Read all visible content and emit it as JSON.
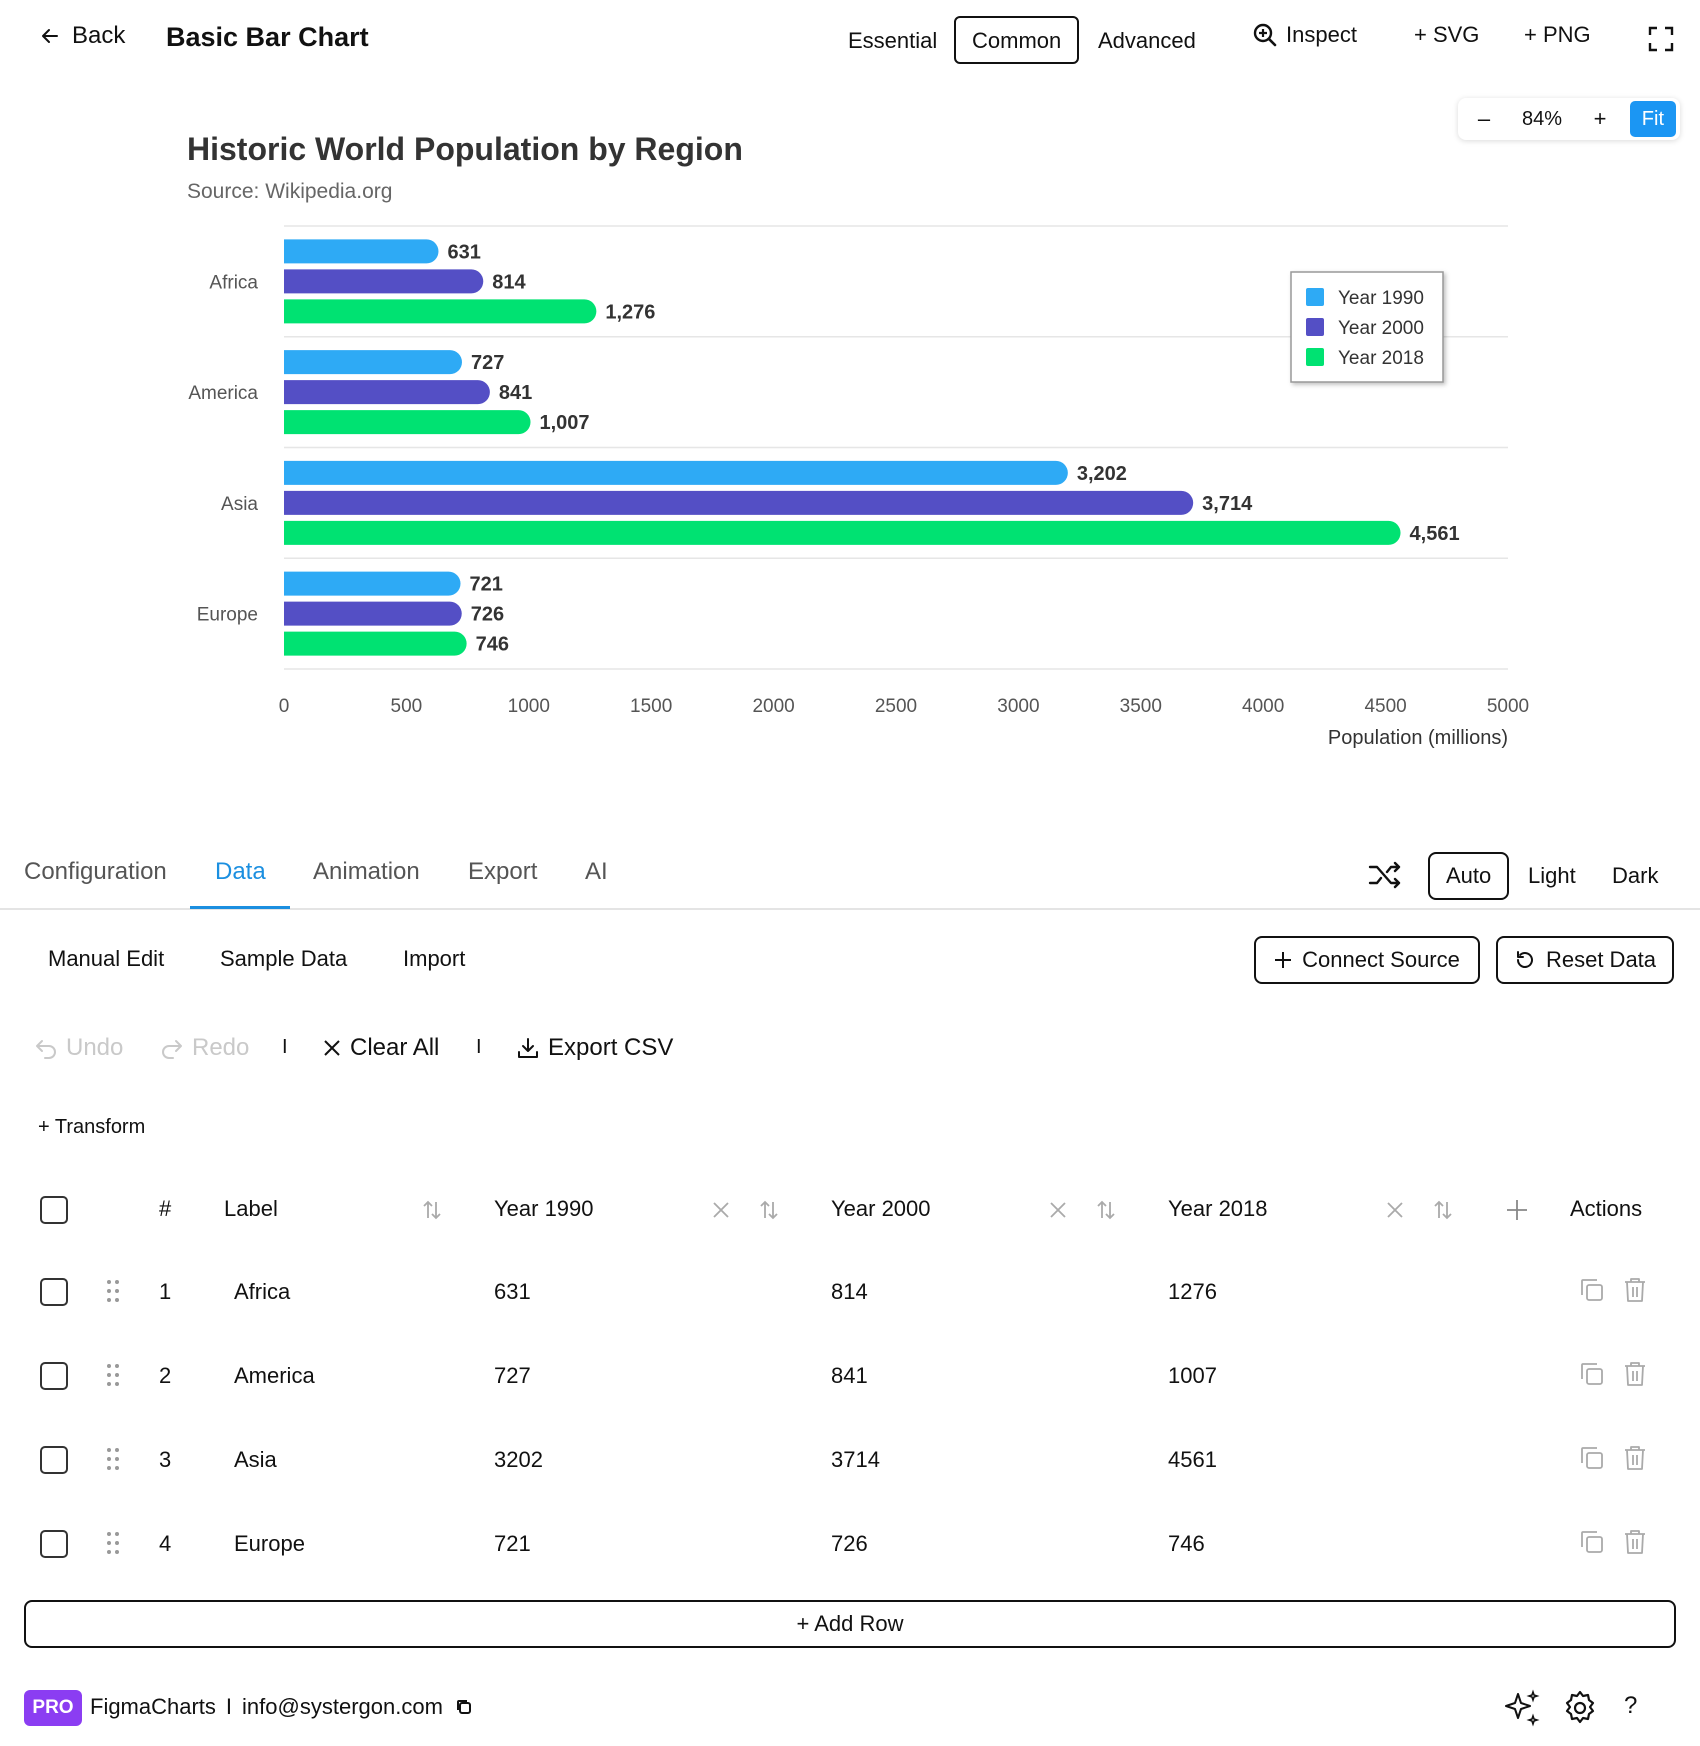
{
  "header": {
    "back_label": "Back",
    "title": "Basic Bar Chart",
    "levels": [
      "Essential",
      "Common",
      "Advanced"
    ],
    "active_level": "Common",
    "inspect_label": "Inspect",
    "svg_label": "+ SVG",
    "png_label": "+ PNG"
  },
  "zoom": {
    "minus": "–",
    "value": "84%",
    "plus": "+",
    "fit": "Fit"
  },
  "chart_data": {
    "type": "bar",
    "orientation": "horizontal",
    "title": "Historic World Population by Region",
    "subtitle": "Source: Wikipedia.org",
    "categories": [
      "Africa",
      "America",
      "Asia",
      "Europe"
    ],
    "series": [
      {
        "name": "Year 1990",
        "color": "#2eaaf5",
        "values": [
          631,
          727,
          3202,
          721
        ],
        "labels": [
          "631",
          "727",
          "3,202",
          "721"
        ]
      },
      {
        "name": "Year 2000",
        "color": "#544fc5",
        "values": [
          814,
          841,
          3714,
          726
        ],
        "labels": [
          "814",
          "841",
          "3,714",
          "726"
        ]
      },
      {
        "name": "Year 2018",
        "color": "#00e272",
        "values": [
          1276,
          1007,
          4561,
          746
        ],
        "labels": [
          "1,276",
          "1,007",
          "4,561",
          "746"
        ]
      }
    ],
    "xlabel": "Population (millions)",
    "xlim": [
      0,
      5000
    ],
    "xticks": [
      "0",
      "500",
      "1000",
      "1500",
      "2000",
      "2500",
      "3000",
      "3500",
      "4000",
      "4500",
      "5000"
    ],
    "legend_position": "top-right",
    "grid": true
  },
  "tabs": {
    "items": [
      "Configuration",
      "Data",
      "Animation",
      "Export",
      "AI"
    ],
    "active": "Data",
    "themes": [
      "Auto",
      "Light",
      "Dark"
    ],
    "active_theme": "Auto"
  },
  "data_panel": {
    "subtabs": [
      "Manual Edit",
      "Sample Data",
      "Import"
    ],
    "connect_source": "Connect Source",
    "reset_data": "Reset Data",
    "undo": "Undo",
    "redo": "Redo",
    "separator": "I",
    "clear_all": "Clear All",
    "export_csv": "Export CSV",
    "transform": "+ Transform",
    "table": {
      "headers": {
        "num": "#",
        "label": "Label",
        "y1990": "Year 1990",
        "y2000": "Year 2000",
        "y2018": "Year 2018",
        "actions": "Actions"
      },
      "rows": [
        {
          "num": "1",
          "label": "Africa",
          "y1990": "631",
          "y2000": "814",
          "y2018": "1276"
        },
        {
          "num": "2",
          "label": "America",
          "y1990": "727",
          "y2000": "841",
          "y2018": "1007"
        },
        {
          "num": "3",
          "label": "Asia",
          "y1990": "3202",
          "y2000": "3714",
          "y2018": "4561"
        },
        {
          "num": "4",
          "label": "Europe",
          "y1990": "721",
          "y2000": "726",
          "y2018": "746"
        }
      ]
    },
    "add_row": "+ Add Row"
  },
  "footer": {
    "badge": "PRO",
    "app_name": "FigmaCharts",
    "separator": "I",
    "email": "info@systergon.com",
    "help": "?"
  }
}
